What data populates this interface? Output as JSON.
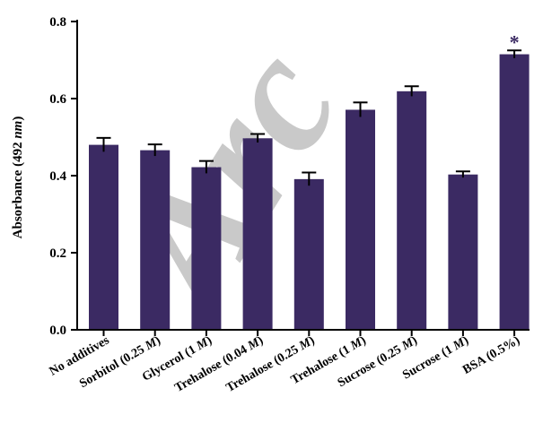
{
  "watermark_text": "Arc",
  "colors": {
    "bar": "#3b2a63",
    "error": "#000000",
    "axis": "#000000",
    "significance": "#3b2a63"
  },
  "chart_data": {
    "type": "bar",
    "title": "",
    "xlabel": "",
    "ylabel": "Absorbance (492 nm)",
    "ylabel_parts": [
      "Absorbance (492 ",
      "nm",
      ")"
    ],
    "ylim": [
      0,
      0.8
    ],
    "yticks": [
      "0.0",
      "0.2",
      "0.4",
      "0.6",
      "0.8"
    ],
    "grid": false,
    "legend": "none",
    "categories": [
      "No additives",
      "Sorbitol (0.25 M)",
      "Glycerol (1 M)",
      "Trehalose (0.04 M)",
      "Trehalose (0.25 M)",
      "Trehalose (1 M)",
      "Sucrose (0.25 M)",
      "Sucrose (1 M)",
      "BSA (0.5%)"
    ],
    "category_parts": [
      [
        "No additives"
      ],
      [
        "Sorbitol (0.25 ",
        "M",
        ")"
      ],
      [
        "Glycerol (1 ",
        "M",
        ")"
      ],
      [
        "Trehalose (0.04 ",
        "M",
        ")"
      ],
      [
        "Trehalose (0.25 ",
        "M",
        ")"
      ],
      [
        "Trehalose (1 ",
        "M",
        ")"
      ],
      [
        "Sucrose (0.25 ",
        "M",
        ")"
      ],
      [
        "Sucrose (1 ",
        "M",
        ")"
      ],
      [
        "BSA (0.5%)"
      ]
    ],
    "values": [
      0.48,
      0.466,
      0.422,
      0.497,
      0.391,
      0.571,
      0.619,
      0.403,
      0.715
    ],
    "errors": [
      0.018,
      0.015,
      0.016,
      0.011,
      0.017,
      0.019,
      0.013,
      0.008,
      0.01
    ],
    "annotations": [
      {
        "category": "BSA (0.5%)",
        "text": "*"
      }
    ]
  }
}
